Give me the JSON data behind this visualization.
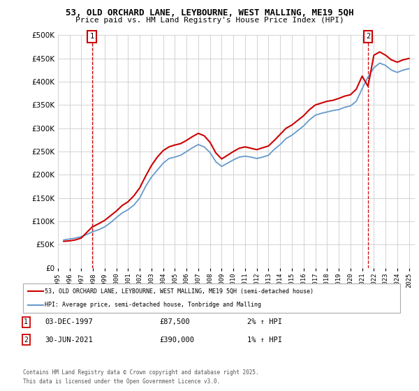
{
  "title": "53, OLD ORCHARD LANE, LEYBOURNE, WEST MALLING, ME19 5QH",
  "subtitle": "Price paid vs. HM Land Registry's House Price Index (HPI)",
  "legend_line1": "53, OLD ORCHARD LANE, LEYBOURNE, WEST MALLING, ME19 5QH (semi-detached house)",
  "legend_line2": "HPI: Average price, semi-detached house, Tonbridge and Malling",
  "footer_line1": "Contains HM Land Registry data © Crown copyright and database right 2025.",
  "footer_line2": "This data is licensed under the Open Government Licence v3.0.",
  "annotation1_label": "1",
  "annotation1_date": "03-DEC-1997",
  "annotation1_price": "£87,500",
  "annotation1_hpi": "2% ↑ HPI",
  "annotation2_label": "2",
  "annotation2_date": "30-JUN-2021",
  "annotation2_price": "£390,000",
  "annotation2_hpi": "1% ↑ HPI",
  "hpi_color": "#6699cc",
  "price_color": "#cc0000",
  "annotation_box_color": "#cc0000",
  "background_color": "#ffffff",
  "ylim": [
    0,
    500000
  ],
  "yticks": [
    0,
    50000,
    100000,
    150000,
    200000,
    250000,
    300000,
    350000,
    400000,
    450000,
    500000
  ],
  "hpi_dates": [
    1995.5,
    1996.0,
    1996.5,
    1997.0,
    1997.5,
    1998.0,
    1998.5,
    1999.0,
    1999.5,
    2000.0,
    2000.5,
    2001.0,
    2001.5,
    2002.0,
    2002.5,
    2003.0,
    2003.5,
    2004.0,
    2004.5,
    2005.0,
    2005.5,
    2006.0,
    2006.5,
    2007.0,
    2007.5,
    2008.0,
    2008.5,
    2009.0,
    2009.5,
    2010.0,
    2010.5,
    2011.0,
    2011.5,
    2012.0,
    2012.5,
    2013.0,
    2013.5,
    2014.0,
    2014.5,
    2015.0,
    2015.5,
    2016.0,
    2016.5,
    2017.0,
    2017.5,
    2018.0,
    2018.5,
    2019.0,
    2019.5,
    2020.0,
    2020.5,
    2021.0,
    2021.5,
    2022.0,
    2022.5,
    2023.0,
    2023.5,
    2024.0,
    2024.5,
    2025.0
  ],
  "hpi_values": [
    60000,
    62000,
    64000,
    67000,
    72000,
    78000,
    82000,
    88000,
    97000,
    108000,
    118000,
    125000,
    135000,
    150000,
    175000,
    195000,
    210000,
    225000,
    235000,
    238000,
    242000,
    250000,
    258000,
    265000,
    260000,
    248000,
    228000,
    218000,
    225000,
    232000,
    238000,
    240000,
    238000,
    235000,
    238000,
    242000,
    255000,
    265000,
    278000,
    285000,
    295000,
    305000,
    318000,
    328000,
    332000,
    335000,
    338000,
    340000,
    345000,
    348000,
    358000,
    385000,
    410000,
    430000,
    440000,
    435000,
    425000,
    420000,
    425000,
    428000
  ],
  "price_dates": [
    1995.5,
    1996.0,
    1996.5,
    1997.0,
    1997.92,
    1998.5,
    1999.0,
    1999.5,
    2000.0,
    2000.5,
    2001.0,
    2001.5,
    2002.0,
    2002.5,
    2003.0,
    2003.5,
    2004.0,
    2004.5,
    2005.0,
    2005.5,
    2006.0,
    2006.5,
    2007.0,
    2007.5,
    2008.0,
    2008.5,
    2009.0,
    2009.5,
    2010.0,
    2010.5,
    2011.0,
    2011.5,
    2012.0,
    2012.5,
    2013.0,
    2013.5,
    2014.0,
    2014.5,
    2015.0,
    2015.5,
    2016.0,
    2016.5,
    2017.0,
    2017.5,
    2018.0,
    2018.5,
    2019.0,
    2019.5,
    2020.0,
    2020.5,
    2021.0,
    2021.5,
    2022.0,
    2022.5,
    2023.0,
    2023.5,
    2024.0,
    2024.5,
    2025.0
  ],
  "price_values": [
    57000,
    58000,
    60000,
    64000,
    87500,
    95000,
    102000,
    112000,
    122000,
    134000,
    142000,
    155000,
    172000,
    197000,
    220000,
    238000,
    252000,
    260000,
    264000,
    267000,
    274000,
    282000,
    289000,
    284000,
    270000,
    247000,
    234000,
    242000,
    250000,
    257000,
    260000,
    257000,
    254000,
    258000,
    262000,
    274000,
    287000,
    300000,
    307000,
    317000,
    327000,
    340000,
    350000,
    354000,
    358000,
    360000,
    364000,
    369000,
    372000,
    384000,
    412000,
    390000,
    457000,
    464000,
    457000,
    447000,
    442000,
    447000,
    450000
  ],
  "ann1_x": 1997.92,
  "ann2_x": 2021.5,
  "xlim": [
    1995.0,
    2025.5
  ],
  "xticks": [
    1995,
    1996,
    1997,
    1998,
    1999,
    2000,
    2001,
    2002,
    2003,
    2004,
    2005,
    2006,
    2007,
    2008,
    2009,
    2010,
    2011,
    2012,
    2013,
    2014,
    2015,
    2016,
    2017,
    2018,
    2019,
    2020,
    2021,
    2022,
    2023,
    2024,
    2025
  ]
}
